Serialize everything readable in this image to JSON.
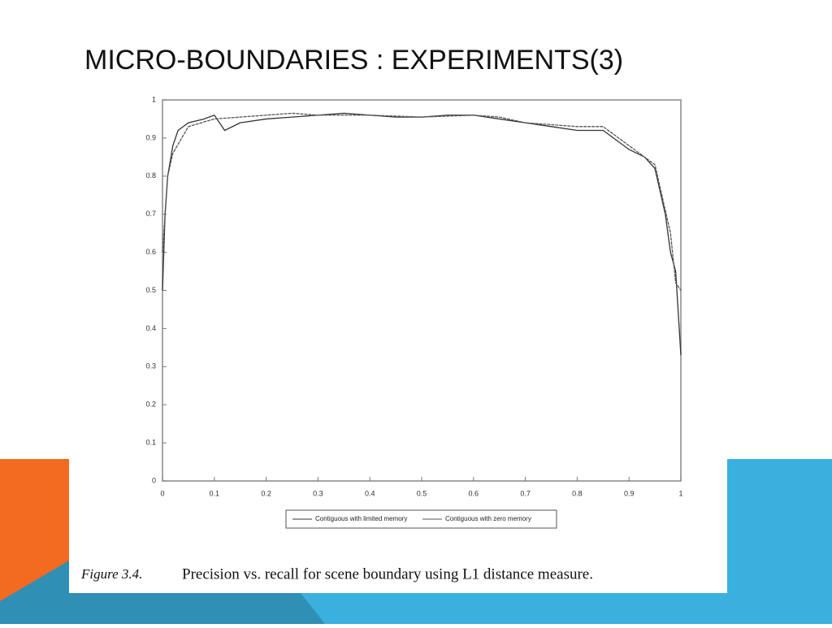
{
  "title": "MICRO-BOUNDARIES : EXPERIMENTS(3)",
  "chart_data": {
    "type": "line",
    "xlim": [
      0,
      1
    ],
    "ylim": [
      0,
      1
    ],
    "xticks": [
      0,
      0.1,
      0.2,
      0.3,
      0.4,
      0.5,
      0.6,
      0.7,
      0.8,
      0.9,
      1
    ],
    "yticks": [
      0,
      0.1,
      0.2,
      0.3,
      0.4,
      0.5,
      0.6,
      0.7,
      0.8,
      0.9,
      1
    ],
    "legend": "bottom",
    "series": [
      {
        "name": "Contiguous with limited memory",
        "color": "#333333",
        "x": [
          0,
          0.005,
          0.01,
          0.02,
          0.03,
          0.05,
          0.08,
          0.1,
          0.12,
          0.15,
          0.2,
          0.25,
          0.3,
          0.35,
          0.4,
          0.45,
          0.5,
          0.55,
          0.6,
          0.65,
          0.7,
          0.75,
          0.8,
          0.85,
          0.88,
          0.9,
          0.93,
          0.95,
          0.97,
          0.98,
          0.99,
          1
        ],
        "values": [
          0.5,
          0.7,
          0.8,
          0.88,
          0.92,
          0.94,
          0.95,
          0.96,
          0.92,
          0.94,
          0.95,
          0.955,
          0.96,
          0.965,
          0.96,
          0.955,
          0.955,
          0.96,
          0.96,
          0.95,
          0.94,
          0.93,
          0.92,
          0.92,
          0.89,
          0.87,
          0.85,
          0.82,
          0.7,
          0.6,
          0.55,
          0.33
        ]
      },
      {
        "name": "Contiguous with zero memory",
        "color": "#555555",
        "x": [
          0,
          0.01,
          0.02,
          0.05,
          0.1,
          0.15,
          0.2,
          0.25,
          0.3,
          0.4,
          0.5,
          0.6,
          0.65,
          0.7,
          0.8,
          0.85,
          0.9,
          0.95,
          0.98,
          0.99,
          1
        ],
        "values": [
          0.6,
          0.8,
          0.86,
          0.93,
          0.95,
          0.955,
          0.96,
          0.965,
          0.96,
          0.96,
          0.955,
          0.96,
          0.955,
          0.94,
          0.93,
          0.93,
          0.88,
          0.83,
          0.65,
          0.52,
          0.5
        ]
      }
    ]
  },
  "caption": {
    "label": "Figure 3.4.",
    "text": "Precision vs. recall for scene boundary using L1 distance measure."
  }
}
